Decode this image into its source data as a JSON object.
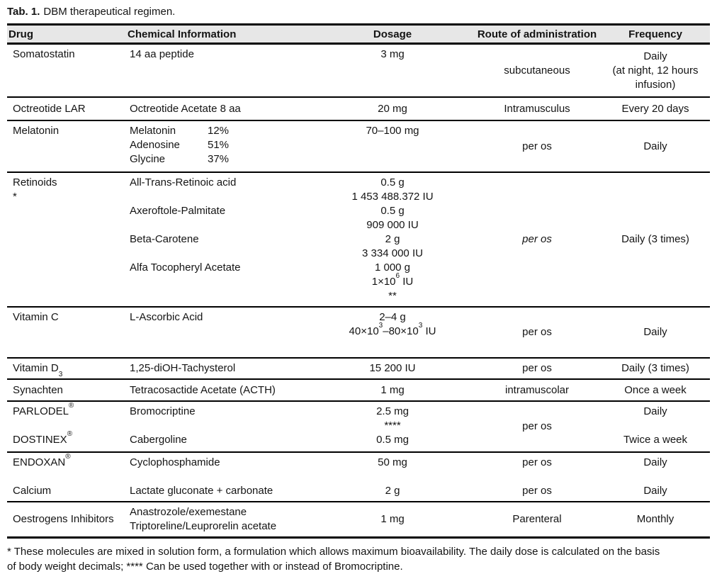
{
  "caption": {
    "label": "Tab. 1.",
    "text": "DBM therapeutical regimen."
  },
  "colors": {
    "header_bg": "#e7e7e7",
    "rule": "#000000",
    "text": "#141414"
  },
  "table": {
    "columns": [
      "Drug",
      "Chemical Information",
      "Dosage",
      "Route of administration",
      "Frequency"
    ],
    "rows": [
      {
        "drug": {
          "lines": [
            "Somatostatin"
          ],
          "valign": "top"
        },
        "chemical": {
          "lines": [
            "14 aa peptide"
          ],
          "valign": "top"
        },
        "dosage": {
          "lines": [
            "3 mg"
          ],
          "valign": "top"
        },
        "route": {
          "lines": [
            "subcutaneous"
          ],
          "valign": "middle"
        },
        "frequency": {
          "lines": [
            "Daily",
            "(at night, 12 hours",
            "infusion)"
          ],
          "valign": "middle"
        }
      },
      {
        "drug": {
          "lines": [
            "Octreotide LAR"
          ],
          "valign": "middle"
        },
        "chemical": {
          "lines": [
            "Octreotide Acetate 8 aa"
          ],
          "valign": "middle"
        },
        "dosage": {
          "lines": [
            "20 mg"
          ],
          "valign": "middle"
        },
        "route": {
          "lines": [
            "Intramusculus"
          ],
          "valign": "middle"
        },
        "frequency": {
          "lines": [
            "Every 20 days"
          ],
          "valign": "middle"
        }
      },
      {
        "drug": {
          "lines": [
            "Melatonin"
          ],
          "valign": "top"
        },
        "chemical": {
          "lines": [
            {
              "cols": [
                "Melatonin",
                "12%"
              ]
            },
            {
              "cols": [
                "Adenosine",
                "51%"
              ]
            },
            {
              "cols": [
                "Glycine",
                "37%"
              ]
            }
          ],
          "valign": "top"
        },
        "dosage": {
          "lines": [
            "70–100 mg"
          ],
          "valign": "top"
        },
        "route": {
          "lines": [
            "per os"
          ],
          "valign": "middle"
        },
        "frequency": {
          "lines": [
            "Daily"
          ],
          "valign": "middle"
        }
      },
      {
        "drug": {
          "lines": [
            "Retinoids",
            "*"
          ],
          "valign": "top"
        },
        "chemical": {
          "lines": [
            "All-Trans-Retinoic acid",
            "",
            "Axeroftole-Palmitate",
            "",
            "Beta-Carotene",
            "",
            "Alfa Tocopheryl Acetate"
          ],
          "valign": "top"
        },
        "dosage": {
          "lines": [
            "0.5 g",
            "1 453 488.372 IU",
            "0.5 g",
            "909 000 IU",
            "2 g",
            "3 334 000 IU",
            "1 000 g",
            "1×10^{6} IU",
            "**"
          ],
          "valign": "top"
        },
        "route": {
          "lines": [
            "per os"
          ],
          "valign": "middle",
          "italic": true
        },
        "frequency": {
          "lines": [
            "Daily (3 times)"
          ],
          "valign": "middle"
        }
      },
      {
        "drug": {
          "lines": [
            "Vitamin C"
          ],
          "valign": "top"
        },
        "chemical": {
          "lines": [
            "L-Ascorbic Acid"
          ],
          "valign": "top"
        },
        "dosage": {
          "lines": [
            "2–4 g",
            "40×10^{3}–80×10^{3} IU"
          ],
          "valign": "top"
        },
        "route": {
          "lines": [
            "per os"
          ],
          "valign": "middle"
        },
        "frequency": {
          "lines": [
            "Daily"
          ],
          "valign": "middle"
        }
      },
      {
        "drug": {
          "lines": [
            "Vitamin D_{3}"
          ],
          "valign": "middle"
        },
        "chemical": {
          "lines": [
            "1,25-diOH-Tachysterol"
          ],
          "valign": "middle"
        },
        "dosage": {
          "lines": [
            "15 200 IU"
          ],
          "valign": "middle"
        },
        "route": {
          "lines": [
            "per os"
          ],
          "valign": "middle"
        },
        "frequency": {
          "lines": [
            "Daily (3 times)"
          ],
          "valign": "middle"
        }
      },
      {
        "drug": {
          "lines": [
            "Synachten"
          ],
          "valign": "middle"
        },
        "chemical": {
          "lines": [
            "Tetracosactide Acetate (ACTH)"
          ],
          "valign": "middle"
        },
        "dosage": {
          "lines": [
            "1 mg"
          ],
          "valign": "middle"
        },
        "route": {
          "lines": [
            "intramuscolar"
          ],
          "valign": "middle"
        },
        "frequency": {
          "lines": [
            "Once a week"
          ],
          "valign": "middle"
        }
      },
      {
        "drug": {
          "lines": [
            "PARLODEL^{®}",
            "",
            "DOSTINEX^{®}"
          ],
          "valign": "top"
        },
        "chemical": {
          "lines": [
            "Bromocriptine",
            "",
            "Cabergoline"
          ],
          "valign": "top"
        },
        "dosage": {
          "lines": [
            "2.5 mg",
            "****",
            "0.5 mg"
          ],
          "valign": "top"
        },
        "route": {
          "lines": [
            "per os"
          ],
          "valign": "middle"
        },
        "frequency": {
          "lines": [
            "Daily",
            "",
            "Twice a week"
          ],
          "valign": "top"
        }
      },
      {
        "drug": {
          "lines": [
            "ENDOXAN^{®}",
            "",
            "Calcium"
          ],
          "valign": "top"
        },
        "chemical": {
          "lines": [
            "Cyclophosphamide",
            "",
            "Lactate gluconate + carbonate"
          ],
          "valign": "top"
        },
        "dosage": {
          "lines": [
            "50 mg",
            "",
            "2 g"
          ],
          "valign": "top"
        },
        "route": {
          "lines": [
            "per os",
            "",
            "per os"
          ],
          "valign": "top"
        },
        "frequency": {
          "lines": [
            "Daily",
            "",
            "Daily"
          ],
          "valign": "top"
        }
      },
      {
        "drug": {
          "lines": [
            "Oestrogens Inhibitors"
          ],
          "valign": "middle"
        },
        "chemical": {
          "lines": [
            "Anastrozole/exemestane",
            "Triptoreline/Leuprorelin acetate"
          ],
          "valign": "middle"
        },
        "dosage": {
          "lines": [
            "1 mg"
          ],
          "valign": "middle"
        },
        "route": {
          "lines": [
            "Parenteral"
          ],
          "valign": "middle"
        },
        "frequency": {
          "lines": [
            "Monthly"
          ],
          "valign": "middle"
        }
      }
    ]
  },
  "footnote": {
    "lines": [
      "* These molecules are mixed in solution form, a formulation which allows maximum bioavailability. The daily dose is calculated on the basis",
      "of body weight decimals; **** Can be used together with or instead of Bromocriptine."
    ]
  }
}
